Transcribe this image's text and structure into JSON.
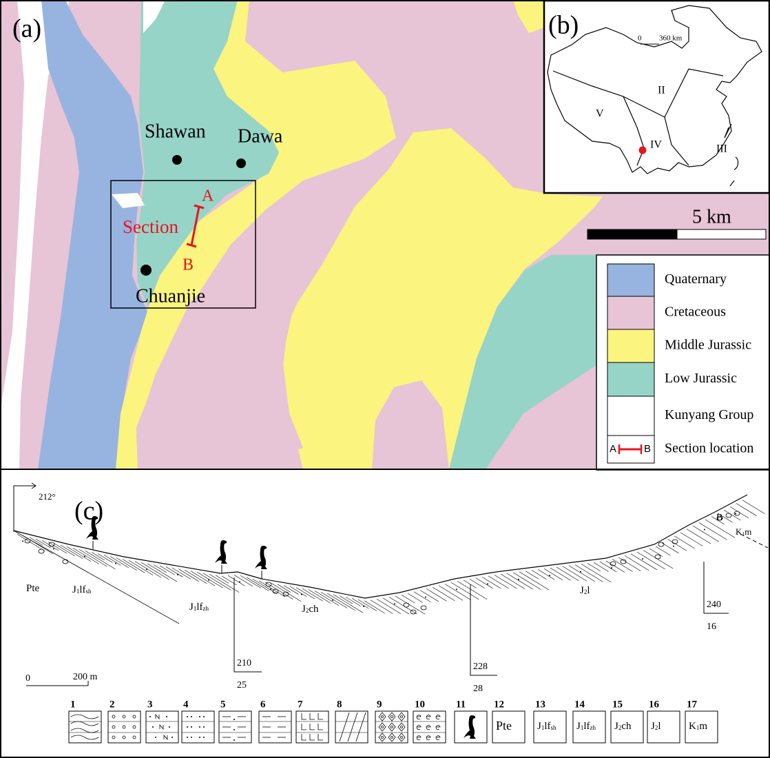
{
  "panel_a": {
    "label": "(a)",
    "places": [
      "Shawan",
      "Dawa",
      "Chuanjie"
    ],
    "section": {
      "label": "Section",
      "start": "A",
      "end": "B",
      "color": "#e8141c"
    },
    "scale": "5 km",
    "legend": [
      {
        "label": "Quaternary",
        "color": "#97b4e0"
      },
      {
        "label": "Cretaceous",
        "color": "#e7c4d6"
      },
      {
        "label": "Middle Jurassic",
        "color": "#fbf47e"
      },
      {
        "label": "Low Jurassic",
        "color": "#96d4c8"
      },
      {
        "label": "Kunyang Group",
        "color": "#ffffff"
      },
      {
        "label": "Section location",
        "start": "A",
        "end": "B"
      }
    ]
  },
  "panel_b": {
    "label": "(b)",
    "scale_start": "0",
    "scale_end": "360 km",
    "regions": [
      "II",
      "V",
      "IV",
      "III"
    ]
  },
  "panel_c": {
    "label": "(c)",
    "bearing": "212°",
    "end_point": "B",
    "formations": [
      [
        "K",
        "1",
        "m"
      ],
      [
        "Pte"
      ],
      [
        "J",
        "1",
        "lf",
        "sh"
      ],
      [
        "J",
        "1",
        "lf",
        "zh"
      ],
      [
        "J",
        "2",
        "ch"
      ],
      [
        "J",
        "2",
        "l"
      ]
    ],
    "attitudes": [
      {
        "strike": "210",
        "dip": "25"
      },
      {
        "strike": "228",
        "dip": "28"
      },
      {
        "strike": "240",
        "dip": "16"
      }
    ],
    "scale_start": "0",
    "scale_end": "200 m",
    "legend": [
      {
        "number": "1"
      },
      {
        "number": "2"
      },
      {
        "number": "3"
      },
      {
        "number": "4"
      },
      {
        "number": "5"
      },
      {
        "number": "6"
      },
      {
        "number": "7"
      },
      {
        "number": "8"
      },
      {
        "number": "9"
      },
      {
        "number": "10"
      },
      {
        "number": "11"
      },
      {
        "number": "12",
        "label": [
          "Pte"
        ]
      },
      {
        "number": "13",
        "label": [
          "J",
          "1",
          "lf",
          "sh"
        ]
      },
      {
        "number": "14",
        "label": [
          "J",
          "1",
          "lf",
          "zh"
        ]
      },
      {
        "number": "15",
        "label": [
          "J",
          "2",
          "ch"
        ]
      },
      {
        "number": "16",
        "label": [
          "J",
          "2",
          "l"
        ]
      },
      {
        "number": "17",
        "label": [
          "K",
          "1",
          "m"
        ]
      }
    ]
  }
}
